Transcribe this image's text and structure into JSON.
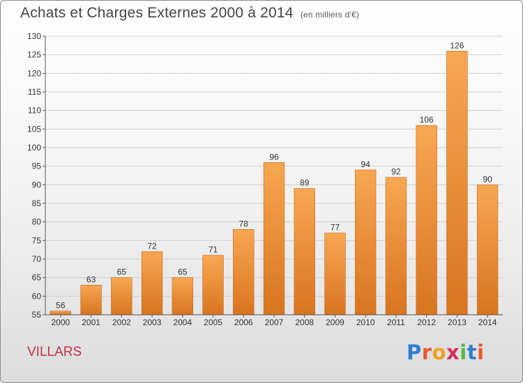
{
  "title": "Achats et Charges Externes 2000 à 2014",
  "subtitle": "(en milliers d'€)",
  "town": "VILLARS",
  "logo": {
    "letters": [
      "P",
      "r",
      "o",
      "x",
      "i",
      "t",
      "i"
    ],
    "colors": [
      "#2f7fd0",
      "#e85a2a",
      "#f0a020",
      "#d83060",
      "#54b848",
      "#2f7fd0",
      "#e85a2a"
    ]
  },
  "chart_data": {
    "type": "bar",
    "categories": [
      "2000",
      "2001",
      "2002",
      "2003",
      "2004",
      "2005",
      "2006",
      "2007",
      "2008",
      "2009",
      "2010",
      "2011",
      "2012",
      "2013",
      "2014"
    ],
    "values": [
      56,
      63,
      65,
      72,
      65,
      71,
      78,
      96,
      89,
      77,
      94,
      92,
      106,
      126,
      90
    ],
    "ylim": [
      55,
      130
    ],
    "yticks": [
      55,
      60,
      65,
      70,
      75,
      80,
      85,
      90,
      95,
      100,
      105,
      110,
      115,
      120,
      125,
      130
    ],
    "grid": true,
    "bar_color_top": "#f7a752",
    "bar_color_bottom": "#d9741f"
  }
}
